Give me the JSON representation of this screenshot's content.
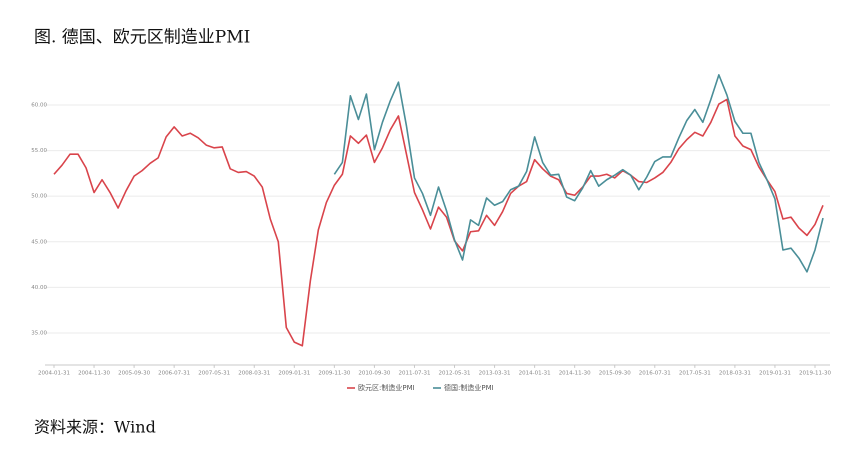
{
  "chart_data": {
    "type": "line",
    "title": "图. 德国、欧元区制造业PMI",
    "source": "资料来源：Wind",
    "x": [
      "2004-01-31",
      "2004-03-31",
      "2004-05-31",
      "2004-07-31",
      "2004-09-30",
      "2004-11-30",
      "2005-01-31",
      "2005-03-31",
      "2005-05-31",
      "2005-07-31",
      "2005-09-30",
      "2005-11-30",
      "2006-01-31",
      "2006-03-31",
      "2006-05-31",
      "2006-07-31",
      "2006-09-30",
      "2006-11-30",
      "2007-01-31",
      "2007-03-31",
      "2007-05-31",
      "2007-07-31",
      "2007-09-30",
      "2007-11-30",
      "2008-01-31",
      "2008-03-31",
      "2008-05-31",
      "2008-07-31",
      "2008-09-30",
      "2008-11-30",
      "2009-01-31",
      "2009-03-31",
      "2009-05-31",
      "2009-07-31",
      "2009-09-30",
      "2009-11-30",
      "2010-01-31",
      "2010-03-31",
      "2010-05-31",
      "2010-07-31",
      "2010-09-30",
      "2010-11-30",
      "2011-01-31",
      "2011-03-31",
      "2011-05-31",
      "2011-07-31",
      "2011-09-30",
      "2011-11-30",
      "2012-01-31",
      "2012-03-31",
      "2012-05-31",
      "2012-07-31",
      "2012-09-30",
      "2012-11-30",
      "2013-01-31",
      "2013-03-31",
      "2013-05-31",
      "2013-07-31",
      "2013-09-30",
      "2013-11-30",
      "2014-01-31",
      "2014-03-31",
      "2014-05-31",
      "2014-07-31",
      "2014-09-30",
      "2014-11-30",
      "2015-01-31",
      "2015-03-31",
      "2015-05-31",
      "2015-07-31",
      "2015-09-30",
      "2015-11-30",
      "2016-01-31",
      "2016-03-31",
      "2016-05-31",
      "2016-07-31",
      "2016-09-30",
      "2016-11-30",
      "2017-01-31",
      "2017-03-31",
      "2017-05-31",
      "2017-07-31",
      "2017-09-30",
      "2017-11-30",
      "2018-01-31",
      "2018-03-31",
      "2018-05-31",
      "2018-07-31",
      "2018-09-30",
      "2018-11-30",
      "2019-01-31",
      "2019-03-31",
      "2019-05-31",
      "2019-07-31",
      "2019-09-30",
      "2019-11-30",
      "2020-01-31"
    ],
    "series": [
      {
        "name": "欧元区:制造业PMI",
        "color": "#d9444b",
        "values": [
          52.4,
          53.4,
          54.6,
          54.6,
          53.1,
          50.4,
          51.8,
          50.4,
          48.7,
          50.6,
          52.2,
          52.8,
          53.6,
          54.2,
          56.5,
          57.6,
          56.6,
          56.9,
          56.4,
          55.6,
          55.3,
          55.4,
          53.0,
          52.6,
          52.7,
          52.2,
          51.0,
          47.5,
          45.0,
          35.6,
          34.0,
          33.6,
          40.7,
          46.3,
          49.3,
          51.2,
          52.4,
          56.6,
          55.8,
          56.7,
          53.7,
          55.3,
          57.3,
          58.8,
          54.6,
          50.4,
          48.5,
          46.4,
          48.8,
          47.7,
          45.1,
          44.0,
          46.1,
          46.2,
          47.9,
          46.8,
          48.3,
          50.3,
          51.1,
          51.6,
          54.0,
          53.0,
          52.2,
          51.8,
          50.3,
          50.1,
          51.0,
          52.2,
          52.2,
          52.4,
          52.0,
          52.8,
          52.3,
          51.6,
          51.5,
          52.0,
          52.6,
          53.7,
          55.2,
          56.2,
          57.0,
          56.6,
          58.1,
          60.1,
          60.6,
          56.6,
          55.5,
          55.1,
          53.2,
          51.8,
          50.5,
          47.5,
          47.7,
          46.5,
          45.7,
          46.9,
          49.0
        ]
      },
      {
        "name": "德国:制造业PMI",
        "color": "#4a8e98",
        "values": [
          null,
          null,
          null,
          null,
          null,
          null,
          null,
          null,
          null,
          null,
          null,
          null,
          null,
          null,
          null,
          null,
          null,
          null,
          null,
          null,
          null,
          null,
          null,
          null,
          null,
          null,
          null,
          null,
          null,
          null,
          null,
          null,
          null,
          null,
          null,
          52.4,
          53.7,
          61.0,
          58.4,
          61.2,
          55.1,
          58.1,
          60.5,
          62.5,
          57.7,
          52.0,
          50.3,
          47.9,
          51.0,
          48.4,
          45.2,
          43.0,
          47.4,
          46.8,
          49.8,
          49.0,
          49.4,
          50.7,
          51.1,
          52.7,
          56.5,
          53.7,
          52.3,
          52.4,
          49.9,
          49.5,
          50.9,
          52.8,
          51.1,
          51.8,
          52.3,
          52.9,
          52.3,
          50.7,
          52.1,
          53.8,
          54.3,
          54.3,
          56.4,
          58.3,
          59.5,
          58.1,
          60.6,
          63.3,
          61.1,
          58.2,
          56.9,
          56.9,
          53.7,
          51.8,
          49.7,
          44.1,
          44.3,
          43.2,
          41.7,
          44.1,
          47.6
        ]
      }
    ],
    "xticks": [
      "2004-01-31",
      "2004-11-30",
      "2005-09-30",
      "2006-07-31",
      "2007-05-31",
      "2008-03-31",
      "2009-01-31",
      "2009-11-30",
      "2010-09-30",
      "2011-07-31",
      "2012-05-31",
      "2013-03-31",
      "2014-01-31",
      "2014-11-30",
      "2015-09-30",
      "2016-07-31",
      "2017-05-31",
      "2018-03-31",
      "2019-01-31",
      "2019-11-30"
    ],
    "ylim": [
      31.5,
      63
    ],
    "yticks": [
      {
        "value": 35,
        "label": "35.00"
      },
      {
        "value": 40,
        "label": "40.00"
      },
      {
        "value": 45,
        "label": "45.00"
      },
      {
        "value": 50,
        "label": "50.00"
      },
      {
        "value": 55,
        "label": "55.00"
      },
      {
        "value": 60,
        "label": "60.00"
      }
    ],
    "grid": true,
    "legend": "bottom"
  }
}
